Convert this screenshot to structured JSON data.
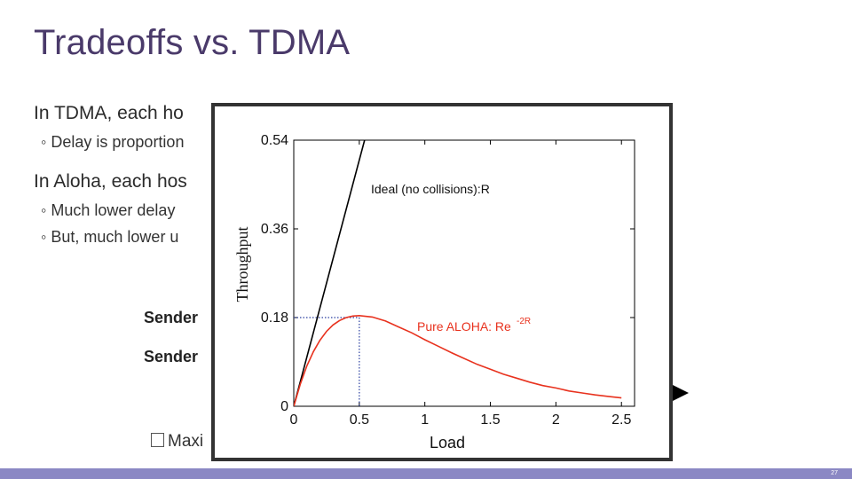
{
  "slide": {
    "title": "Tradeoffs vs. TDMA",
    "bullet1": "In TDMA, each ho",
    "sub1": "◦ Delay is proportion",
    "bullet2": "In Aloha, each hos",
    "sub2": "◦ Much lower delay",
    "sub3": "◦ But, much lower u",
    "sender1": "Sender",
    "sender2": "Sender",
    "maxi": "Maxi",
    "page_number": "27",
    "colors": {
      "title": "#4a3a6a",
      "footer": "#8b88c4"
    }
  },
  "chart_data": {
    "type": "line",
    "ylabel": "Throughput",
    "xlabel": "Load",
    "x_ticks": [
      "0",
      "0.5",
      "1",
      "1.5",
      "2",
      "2.5"
    ],
    "y_ticks": [
      "0",
      "0.18",
      "0.36",
      "0.54"
    ],
    "xlim": [
      0,
      2.6
    ],
    "ylim": [
      0,
      0.54
    ],
    "series": [
      {
        "name": "Ideal (no collisions):R",
        "color": "#000000",
        "x": [
          0,
          0.54
        ],
        "y": [
          0,
          0.54
        ]
      },
      {
        "name": "Pure ALOHA: Re",
        "name_superscript": "-2R",
        "color": "#e8321e",
        "x": [
          0,
          0.05,
          0.1,
          0.15,
          0.2,
          0.25,
          0.3,
          0.35,
          0.4,
          0.45,
          0.5,
          0.6,
          0.7,
          0.8,
          0.9,
          1.0,
          1.1,
          1.2,
          1.3,
          1.4,
          1.5,
          1.6,
          1.7,
          1.8,
          1.9,
          2.0,
          2.1,
          2.2,
          2.3,
          2.4,
          2.5
        ],
        "y": [
          0,
          0.045,
          0.082,
          0.111,
          0.134,
          0.152,
          0.165,
          0.174,
          0.18,
          0.183,
          0.184,
          0.181,
          0.173,
          0.161,
          0.149,
          0.135,
          0.122,
          0.109,
          0.097,
          0.085,
          0.075,
          0.065,
          0.057,
          0.049,
          0.042,
          0.037,
          0.031,
          0.027,
          0.023,
          0.02,
          0.017
        ]
      }
    ],
    "annotation": {
      "x": 0.5,
      "y": 0.18
    }
  }
}
